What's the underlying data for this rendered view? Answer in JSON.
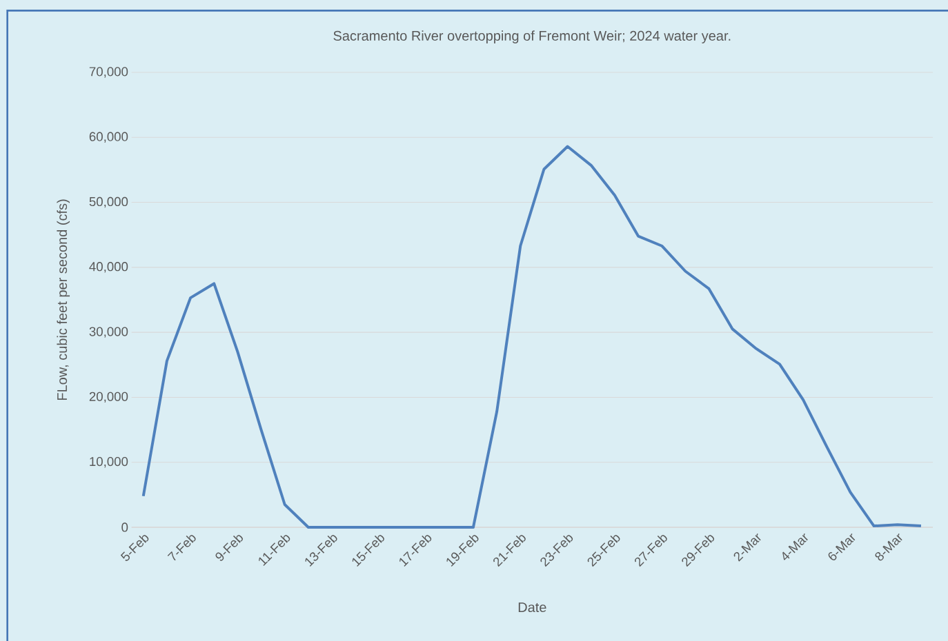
{
  "chart_data": {
    "type": "line",
    "title": "Sacramento River overtopping  of Fremont Weir; 2024 water year.",
    "xlabel": "Date",
    "ylabel": "FLow, cubic feet per second (cfs)",
    "categories": [
      "5-Feb",
      null,
      "7-Feb",
      null,
      "9-Feb",
      null,
      "11-Feb",
      null,
      "13-Feb",
      null,
      "15-Feb",
      null,
      "17-Feb",
      null,
      "19-Feb",
      null,
      "21-Feb",
      null,
      "23-Feb",
      null,
      "25-Feb",
      null,
      "27-Feb",
      null,
      "29-Feb",
      null,
      "2-Mar",
      null,
      "4-Mar",
      null,
      "6-Mar",
      null,
      "8-Mar",
      null
    ],
    "series": [
      {
        "color": "#4f81bd",
        "values": [
          4800,
          25600,
          35300,
          37500,
          27000,
          15000,
          3500,
          0,
          0,
          0,
          0,
          0,
          0,
          0,
          0,
          17800,
          43300,
          55100,
          58600,
          55700,
          51100,
          44800,
          43300,
          39400,
          36700,
          30500,
          27500,
          25100,
          19600,
          12400,
          5400,
          200,
          400,
          200
        ]
      }
    ],
    "ylim": [
      0,
      70000
    ],
    "yticks": [
      0,
      {
        "value": 10000,
        "label": "10,000"
      },
      {
        "value": 20000,
        "label": "20,000"
      },
      {
        "value": 30000,
        "label": "30,000"
      },
      {
        "value": 40000,
        "label": "40,000"
      },
      {
        "value": 50000,
        "label": "50,000"
      },
      {
        "value": 60000,
        "label": "60,000"
      },
      {
        "value": 70000,
        "label": "70,000"
      }
    ],
    "grid": "y",
    "marker": "none",
    "line_style": "solid"
  }
}
